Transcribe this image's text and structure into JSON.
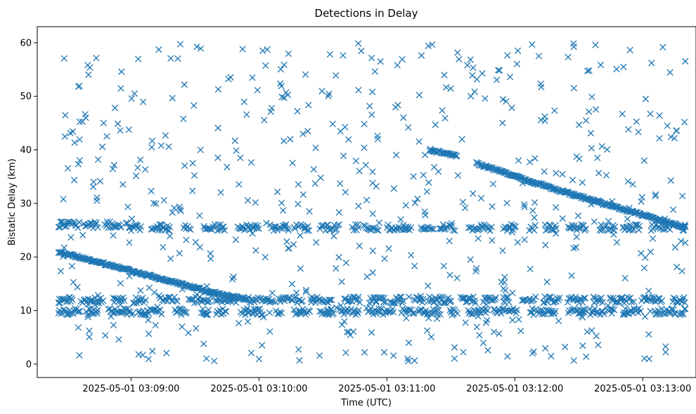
{
  "chart_data": {
    "type": "scatter",
    "title": "Detections in Delay",
    "xlabel": "Time (UTC)",
    "ylabel": "Bistatic Delay (km)",
    "x_type": "datetime",
    "xlim": [
      "2025-05-01 03:08:16",
      "2025-05-01 03:13:25"
    ],
    "ylim": [
      -2.5,
      63
    ],
    "x_ticks": [
      {
        "value": "2025-05-01 03:09:00",
        "label": "2025-05-01 03:09:00"
      },
      {
        "value": "2025-05-01 03:10:00",
        "label": "2025-05-01 03:10:00"
      },
      {
        "value": "2025-05-01 03:11:00",
        "label": "2025-05-01 03:11:00"
      },
      {
        "value": "2025-05-01 03:12:00",
        "label": "2025-05-01 03:12:00"
      },
      {
        "value": "2025-05-01 03:13:00",
        "label": "2025-05-01 03:13:00"
      }
    ],
    "y_ticks": [
      0,
      10,
      20,
      30,
      40,
      50,
      60
    ],
    "marker": "x",
    "color": "#1f77b4",
    "grid": false,
    "legend": "none",
    "series": [
      {
        "tracks": [
          {
            "start": "2025-05-01 03:08:26",
            "end": "2025-05-01 03:09:37",
            "y_start": 21,
            "y_end": 13.5
          },
          {
            "start": "2025-05-01 03:09:37",
            "end": "2025-05-01 03:09:55",
            "y_start": 13.5,
            "y_end": 12
          },
          {
            "start": "2025-05-01 03:11:20",
            "end": "2025-05-01 03:11:33",
            "y_start": 40,
            "y_end": 38.8
          },
          {
            "start": "2025-05-01 03:11:42",
            "end": "2025-05-01 03:12:20",
            "y_start": 37.5,
            "y_end": 32.5
          },
          {
            "start": "2025-05-01 03:12:20",
            "end": "2025-05-01 03:13:20",
            "y_start": 32.5,
            "y_end": 25.5
          }
        ],
        "bands": [
          {
            "start": "2025-05-01 03:08:26",
            "end": "2025-05-01 03:09:00",
            "y": 26
          },
          {
            "start": "2025-05-01 03:08:26",
            "end": "2025-05-01 03:13:20",
            "y": 12
          },
          {
            "start": "2025-05-01 03:08:26",
            "end": "2025-05-01 03:13:20",
            "y": 9.8
          },
          {
            "start": "2025-05-01 03:09:00",
            "end": "2025-05-01 03:13:20",
            "y": 25.5
          }
        ]
      }
    ]
  }
}
